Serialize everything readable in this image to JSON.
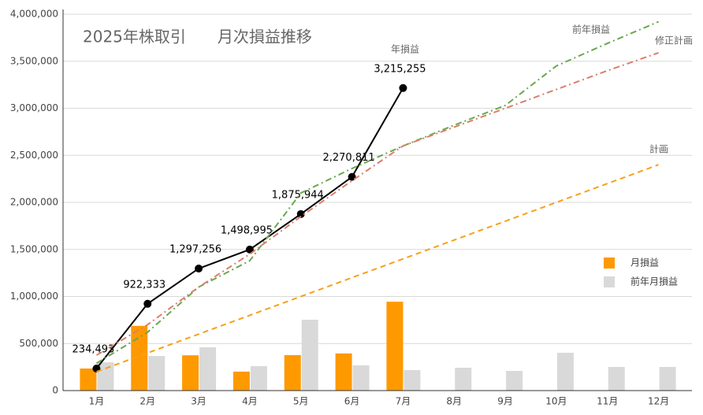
{
  "chart_data": {
    "type": "combo",
    "title": "2025年株取引　　月次損益推移",
    "categories": [
      "1月",
      "2月",
      "3月",
      "4月",
      "5月",
      "6月",
      "7月",
      "8月",
      "9月",
      "10月",
      "11月",
      "12月"
    ],
    "ylim": [
      0,
      4000000
    ],
    "yticks": [
      0,
      {
        "value": 500000,
        "label": "500,000"
      },
      {
        "value": 1000000,
        "label": "1,000,000"
      },
      {
        "value": 1500000,
        "label": "1,500,000"
      },
      {
        "value": 2000000,
        "label": "2,000,000"
      },
      {
        "value": 2500000,
        "label": "2,500,000"
      },
      {
        "value": 3000000,
        "label": "3,000,000"
      },
      {
        "value": 3500000,
        "label": "3,500,000"
      },
      {
        "value": 4000000,
        "label": "4,000,000"
      }
    ],
    "grid": true,
    "series": [
      {
        "name": "月損益",
        "type": "bar",
        "color": "#ff9900",
        "values": [
          234493,
          687840,
          374923,
          201739,
          376949,
          394867,
          944444,
          null,
          null,
          null,
          null,
          null
        ]
      },
      {
        "name": "前年月損益",
        "type": "bar",
        "color": "#d9d9d9",
        "values": [
          300000,
          368000,
          460000,
          260000,
          753000,
          268000,
          218000,
          243000,
          209000,
          402000,
          251000,
          251000
        ]
      },
      {
        "name": "年損益",
        "type": "line",
        "color": "#000000",
        "dash": "solid",
        "markers": true,
        "values": [
          234493,
          922333,
          1297256,
          1498995,
          1875944,
          2270811,
          3215255,
          null,
          null,
          null,
          null,
          null
        ],
        "value_labels": [
          "234,493",
          "922,333",
          "1,297,256",
          "1,498,995",
          "1,875,944",
          "2,270,811",
          "3,215,255",
          null,
          null,
          null,
          null,
          null
        ]
      },
      {
        "name": "前年損益",
        "type": "line",
        "color": "#6aa84f",
        "dash": "dash-dot",
        "values": [
          290000,
          620000,
          1100000,
          1380000,
          2100000,
          2360000,
          2600000,
          2820000,
          3030000,
          3450000,
          3690000,
          3920000
        ]
      },
      {
        "name": "修正計画",
        "type": "line",
        "color": "#dd7e6b",
        "dash": "dash-dot",
        "values": [
          376000,
          700000,
          1100000,
          1450000,
          1850000,
          2230000,
          2600000,
          2800000,
          3000000,
          3200000,
          3400000,
          3590000
        ]
      },
      {
        "name": "計画",
        "type": "line",
        "color": "#f6a11a",
        "dash": "dashed",
        "values": [
          200000,
          400000,
          600000,
          800000,
          1000000,
          1200000,
          1400000,
          1600000,
          1800000,
          2000000,
          2200000,
          2400000
        ]
      }
    ]
  }
}
